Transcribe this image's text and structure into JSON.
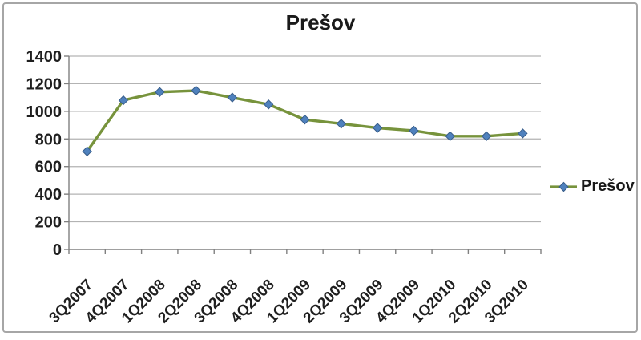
{
  "title": "Prešov",
  "legend": {
    "label": "Prešov"
  },
  "colors": {
    "line": "#77933C",
    "marker_fill": "#4F81BD",
    "marker_border": "#385D8A",
    "gridline": "#b3b3b3",
    "axis": "#808080",
    "label_text": "#1f1f1f",
    "frame_border": "#a6a6a6"
  },
  "chart_data": {
    "type": "line",
    "title": "Prešov",
    "categories": [
      "3Q2007",
      "4Q2007",
      "1Q2008",
      "2Q2008",
      "3Q2008",
      "4Q2008",
      "1Q2009",
      "2Q2009",
      "3Q2009",
      "4Q2009",
      "1Q2010",
      "2Q2010",
      "3Q2010"
    ],
    "series": [
      {
        "name": "Prešov",
        "values": [
          710,
          1080,
          1140,
          1150,
          1100,
          1050,
          940,
          910,
          880,
          860,
          820,
          820,
          840
        ]
      }
    ],
    "xlabel": "",
    "ylabel": "",
    "ylim": [
      0,
      1400
    ],
    "ytick_step": 200,
    "grid": true,
    "legend_position": "right",
    "marker": "diamond",
    "x_label_rotation_deg": -45
  }
}
